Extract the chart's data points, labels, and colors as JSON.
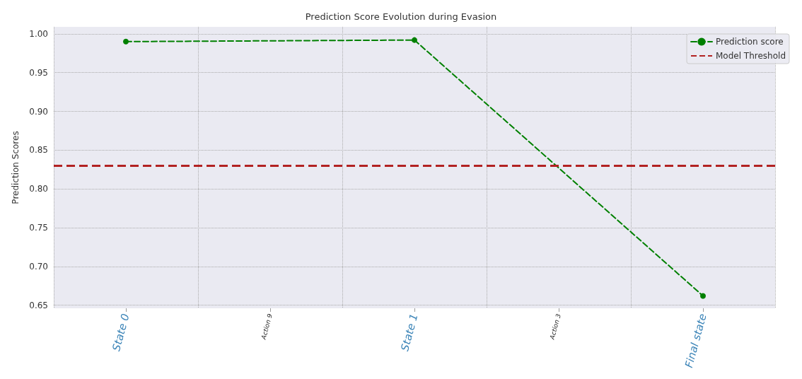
{
  "chart_data": {
    "type": "line",
    "title": "Prediction Score Evolution during Evasion",
    "ylabel": "Prediction Scores",
    "categories": [
      "State 0",
      "Action 9",
      "State 1",
      "Action 3",
      "Final state"
    ],
    "series": [
      {
        "name": "Prediction score",
        "color": "#008000",
        "values": [
          0.99,
          null,
          0.992,
          null,
          0.662
        ]
      }
    ],
    "ref_lines": [
      {
        "axis": "y",
        "value": 0.83,
        "label": "Model Threshold",
        "color": "#b22222",
        "line_style": "dashed"
      }
    ],
    "ylim": [
      0.646,
      1.009
    ],
    "yticks": [
      0.65,
      {
        "value": 0.7,
        "label": "0.70"
      },
      0.75,
      {
        "value": 0.8,
        "label": "0.80"
      },
      0.85,
      {
        "value": 0.9,
        "label": "0.90"
      },
      0.95,
      {
        "value": 1,
        "label": "1.00"
      }
    ],
    "grid": true,
    "legend": "top right",
    "marker": "circle",
    "line_style": "dashed"
  }
}
